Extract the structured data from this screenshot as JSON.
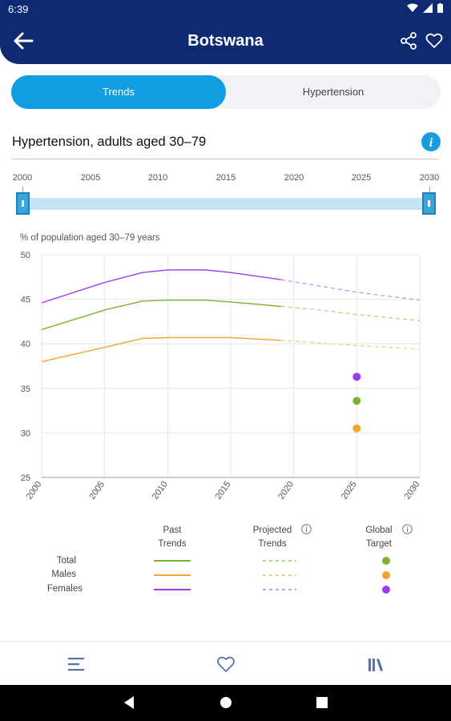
{
  "status": {
    "time": "6:39"
  },
  "header": {
    "title": "Botswana"
  },
  "tabs": [
    {
      "label": "Trends",
      "active": true
    },
    {
      "label": "Hypertension",
      "active": false
    }
  ],
  "section": {
    "title": "Hypertension, adults aged 30–79"
  },
  "slider": {
    "years": [
      "2000",
      "2005",
      "2010",
      "2015",
      "2020",
      "2025",
      "2030"
    ],
    "range": [
      2000,
      2030
    ]
  },
  "colors": {
    "total": "#78b52c",
    "males": "#f3a52b",
    "females": "#9a3df0",
    "accent": "#0f9ee2",
    "appbar": "#0d2a72"
  },
  "chart_data": {
    "type": "line",
    "ylabel": "% of population aged 30–79 years",
    "xlim": [
      2000,
      2030
    ],
    "ylim": [
      25,
      50
    ],
    "yticks": [
      25,
      30,
      35,
      40,
      45,
      50
    ],
    "xticks": [
      2000,
      2005,
      2010,
      2015,
      2020,
      2025,
      2030
    ],
    "grid": true,
    "x": [
      2000,
      2005,
      2008,
      2010,
      2013,
      2015,
      2019,
      2022,
      2025,
      2030
    ],
    "projection_start": 2019,
    "series": [
      {
        "name": "Total",
        "color": "#78b52c",
        "values": [
          41.6,
          43.8,
          44.8,
          44.9,
          44.9,
          44.7,
          44.2,
          43.8,
          43.3,
          42.6
        ]
      },
      {
        "name": "Males",
        "color": "#f3a52b",
        "values": [
          38.0,
          39.6,
          40.6,
          40.7,
          40.7,
          40.7,
          40.4,
          40.1,
          39.8,
          39.4
        ]
      },
      {
        "name": "Females",
        "color": "#9a3df0",
        "values": [
          44.6,
          46.9,
          48.0,
          48.3,
          48.3,
          48.0,
          47.2,
          46.5,
          45.8,
          44.9
        ]
      }
    ],
    "targets": [
      {
        "name": "Females",
        "x": 2025,
        "value": 36.3,
        "color": "#9a3df0"
      },
      {
        "name": "Total",
        "x": 2025,
        "value": 33.6,
        "color": "#78b52c"
      },
      {
        "name": "Males",
        "x": 2025,
        "value": 30.5,
        "color": "#f3a52b"
      }
    ]
  },
  "legend": {
    "past": "Past Trends",
    "projected": "Projected Trends",
    "target": "Global Target",
    "rows": [
      "Total",
      "Males",
      "Females"
    ]
  }
}
